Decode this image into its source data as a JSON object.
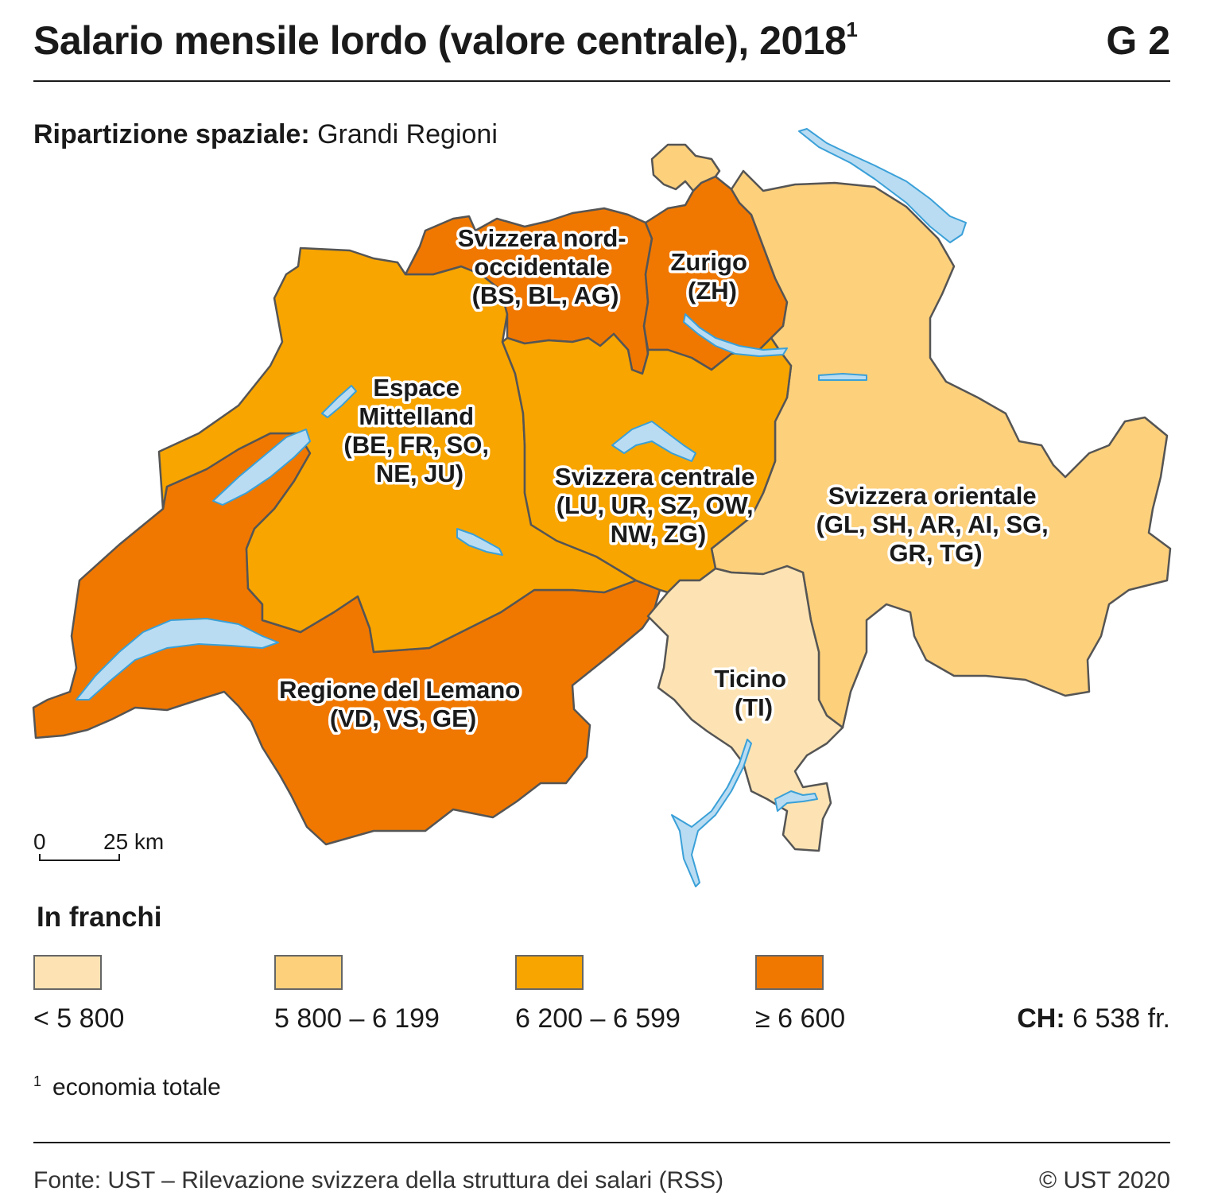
{
  "header": {
    "title": "Salario mensile lordo (valore centrale), 2018",
    "title_note": "1",
    "code": "G 2"
  },
  "subtitle": {
    "label": "Ripartizione spaziale:",
    "value": "Grandi Regioni"
  },
  "map": {
    "regions": [
      {
        "key": "lemano",
        "lines": [
          "Regione  del Lemano",
          "(VD, VS, GE)"
        ],
        "class": "≥ 6 600"
      },
      {
        "key": "mittelland",
        "lines": [
          "Espace",
          "Mittelland",
          "(BE, FR, SO,",
          "NE, JU)"
        ],
        "class": "6 200 – 6 599"
      },
      {
        "key": "nordovest",
        "lines": [
          "Svizzera nord-",
          "occidentale",
          "(BS, BL, AG)"
        ],
        "class": "≥ 6 600"
      },
      {
        "key": "zurigo",
        "lines": [
          "Zurigo",
          "(ZH)"
        ],
        "class": "≥ 6 600"
      },
      {
        "key": "oriente",
        "lines": [
          "Svizzera orientale",
          "(GL, SH, AR, AI, SG,",
          "GR, TG)"
        ],
        "class": "5 800 – 6 199"
      },
      {
        "key": "centrale",
        "lines": [
          "Svizzera centrale",
          "(LU, UR, SZ, OW,",
          "NW, ZG)"
        ],
        "class": "6 200 – 6 599"
      },
      {
        "key": "ticino",
        "lines": [
          "Ticino",
          "(TI)"
        ],
        "class": "< 5 800"
      }
    ],
    "scale": {
      "start": "0",
      "end": "25 km"
    },
    "colors": {
      "lt5800": "#fde3b3",
      "c5800": "#fdd07c",
      "c6200": "#f8a500",
      "ge6600": "#f07800",
      "lake": "#b9dcf2",
      "lake_stroke": "#3aa0d8",
      "border": "#555555"
    }
  },
  "legend": {
    "title": "In franchi",
    "items": [
      {
        "label": "< 5 800",
        "color": "#fde3b3"
      },
      {
        "label": "5 800 – 6 199",
        "color": "#fdd07c"
      },
      {
        "label": "6 200 – 6 599",
        "color": "#f8a500"
      },
      {
        "label": "≥ 6 600",
        "color": "#f07800"
      }
    ],
    "total_label": "CH:",
    "total_value": "6 538 fr."
  },
  "footnote": {
    "mark": "1",
    "text": "economia totale"
  },
  "footer": {
    "source": "Fonte: UST – Rilevazione svizzera della struttura dei salari (RSS)",
    "copyright": "© UST 2020"
  }
}
